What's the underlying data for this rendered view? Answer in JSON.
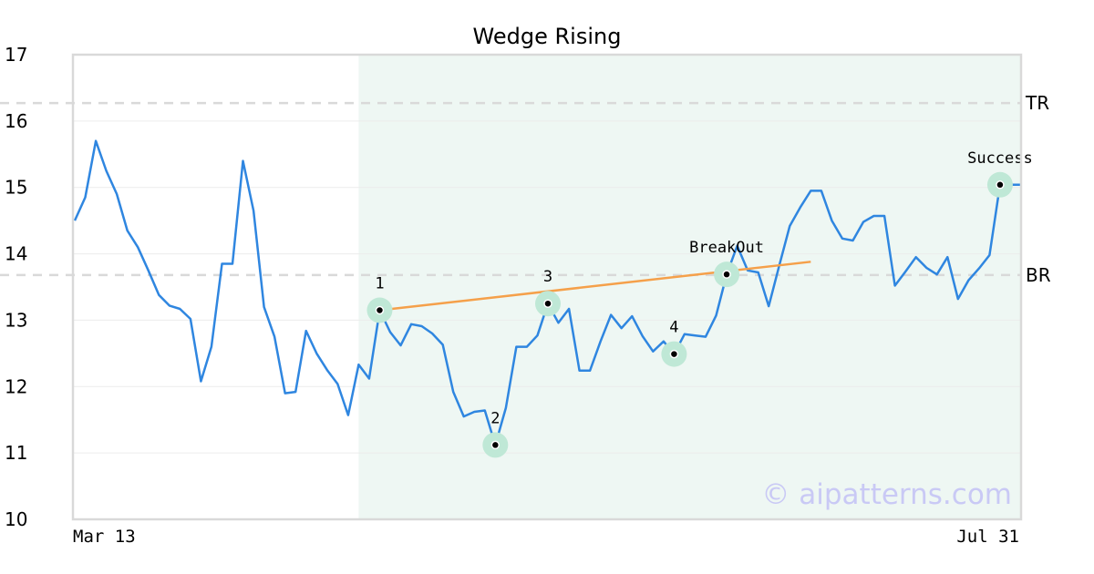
{
  "chart_data": {
    "type": "line",
    "title": "Wedge Rising",
    "ylim": [
      10,
      17
    ],
    "yticks": [
      "10",
      "11",
      "12",
      "13",
      "14",
      "15",
      "16",
      "17"
    ],
    "xtick_labels": [
      "Mar 13",
      "Jul 31"
    ],
    "grid": true,
    "watermark": "© aipatterns.com",
    "colors": {
      "price": "#2f86e0",
      "trendline": "#f5a04a",
      "highlight_zone": "#eef7f3",
      "marker_halo": "#bfe8d6",
      "reference_line": "#d9d9d9",
      "frame": "#d9d9d9",
      "gridline": "#ececec"
    },
    "pattern_zone": {
      "x_start": 27,
      "x_end": 90
    },
    "reference_lines": [
      {
        "label": "TR",
        "y": 16.27
      },
      {
        "label": "BR",
        "y": 13.68
      }
    ],
    "trendline": {
      "from": [
        29,
        13.15
      ],
      "to": [
        70,
        13.88
      ]
    },
    "series": [
      {
        "values": [
          14.5,
          14.85,
          15.7,
          15.25,
          14.9,
          14.35,
          14.1,
          13.75,
          13.38,
          13.22,
          13.17,
          13.02,
          12.08,
          12.6,
          13.85,
          13.85,
          15.4,
          14.65,
          13.2,
          12.75,
          11.9,
          11.92,
          12.84,
          12.5,
          12.25,
          12.04,
          11.57,
          12.33,
          12.12,
          13.15,
          12.82,
          12.62,
          12.94,
          12.91,
          12.8,
          12.63,
          11.92,
          11.55,
          11.62,
          11.64,
          11.12,
          11.68,
          12.6,
          12.6,
          12.77,
          13.25,
          12.96,
          13.17,
          12.24,
          12.24,
          12.68,
          13.08,
          12.88,
          13.06,
          12.76,
          12.53,
          12.68,
          12.49,
          12.79,
          12.77,
          12.75,
          13.07,
          13.69,
          14.12,
          13.75,
          13.72,
          13.21,
          13.82,
          14.42,
          14.7,
          14.95,
          14.95,
          14.5,
          14.23,
          14.2,
          14.48,
          14.57,
          14.57,
          13.52,
          13.73,
          13.95,
          13.79,
          13.69,
          13.95,
          13.32,
          13.6,
          13.78,
          13.98,
          15.04,
          15.04,
          15.04
        ]
      }
    ],
    "points": [
      {
        "label": "1",
        "x": 29,
        "y": 13.15
      },
      {
        "label": "2",
        "x": 40,
        "y": 11.12
      },
      {
        "label": "3",
        "x": 45,
        "y": 13.25
      },
      {
        "label": "4",
        "x": 57,
        "y": 12.49
      },
      {
        "label": "BreakOut",
        "x": 62,
        "y": 13.69
      },
      {
        "label": "Success",
        "x": 88,
        "y": 15.04
      }
    ]
  }
}
